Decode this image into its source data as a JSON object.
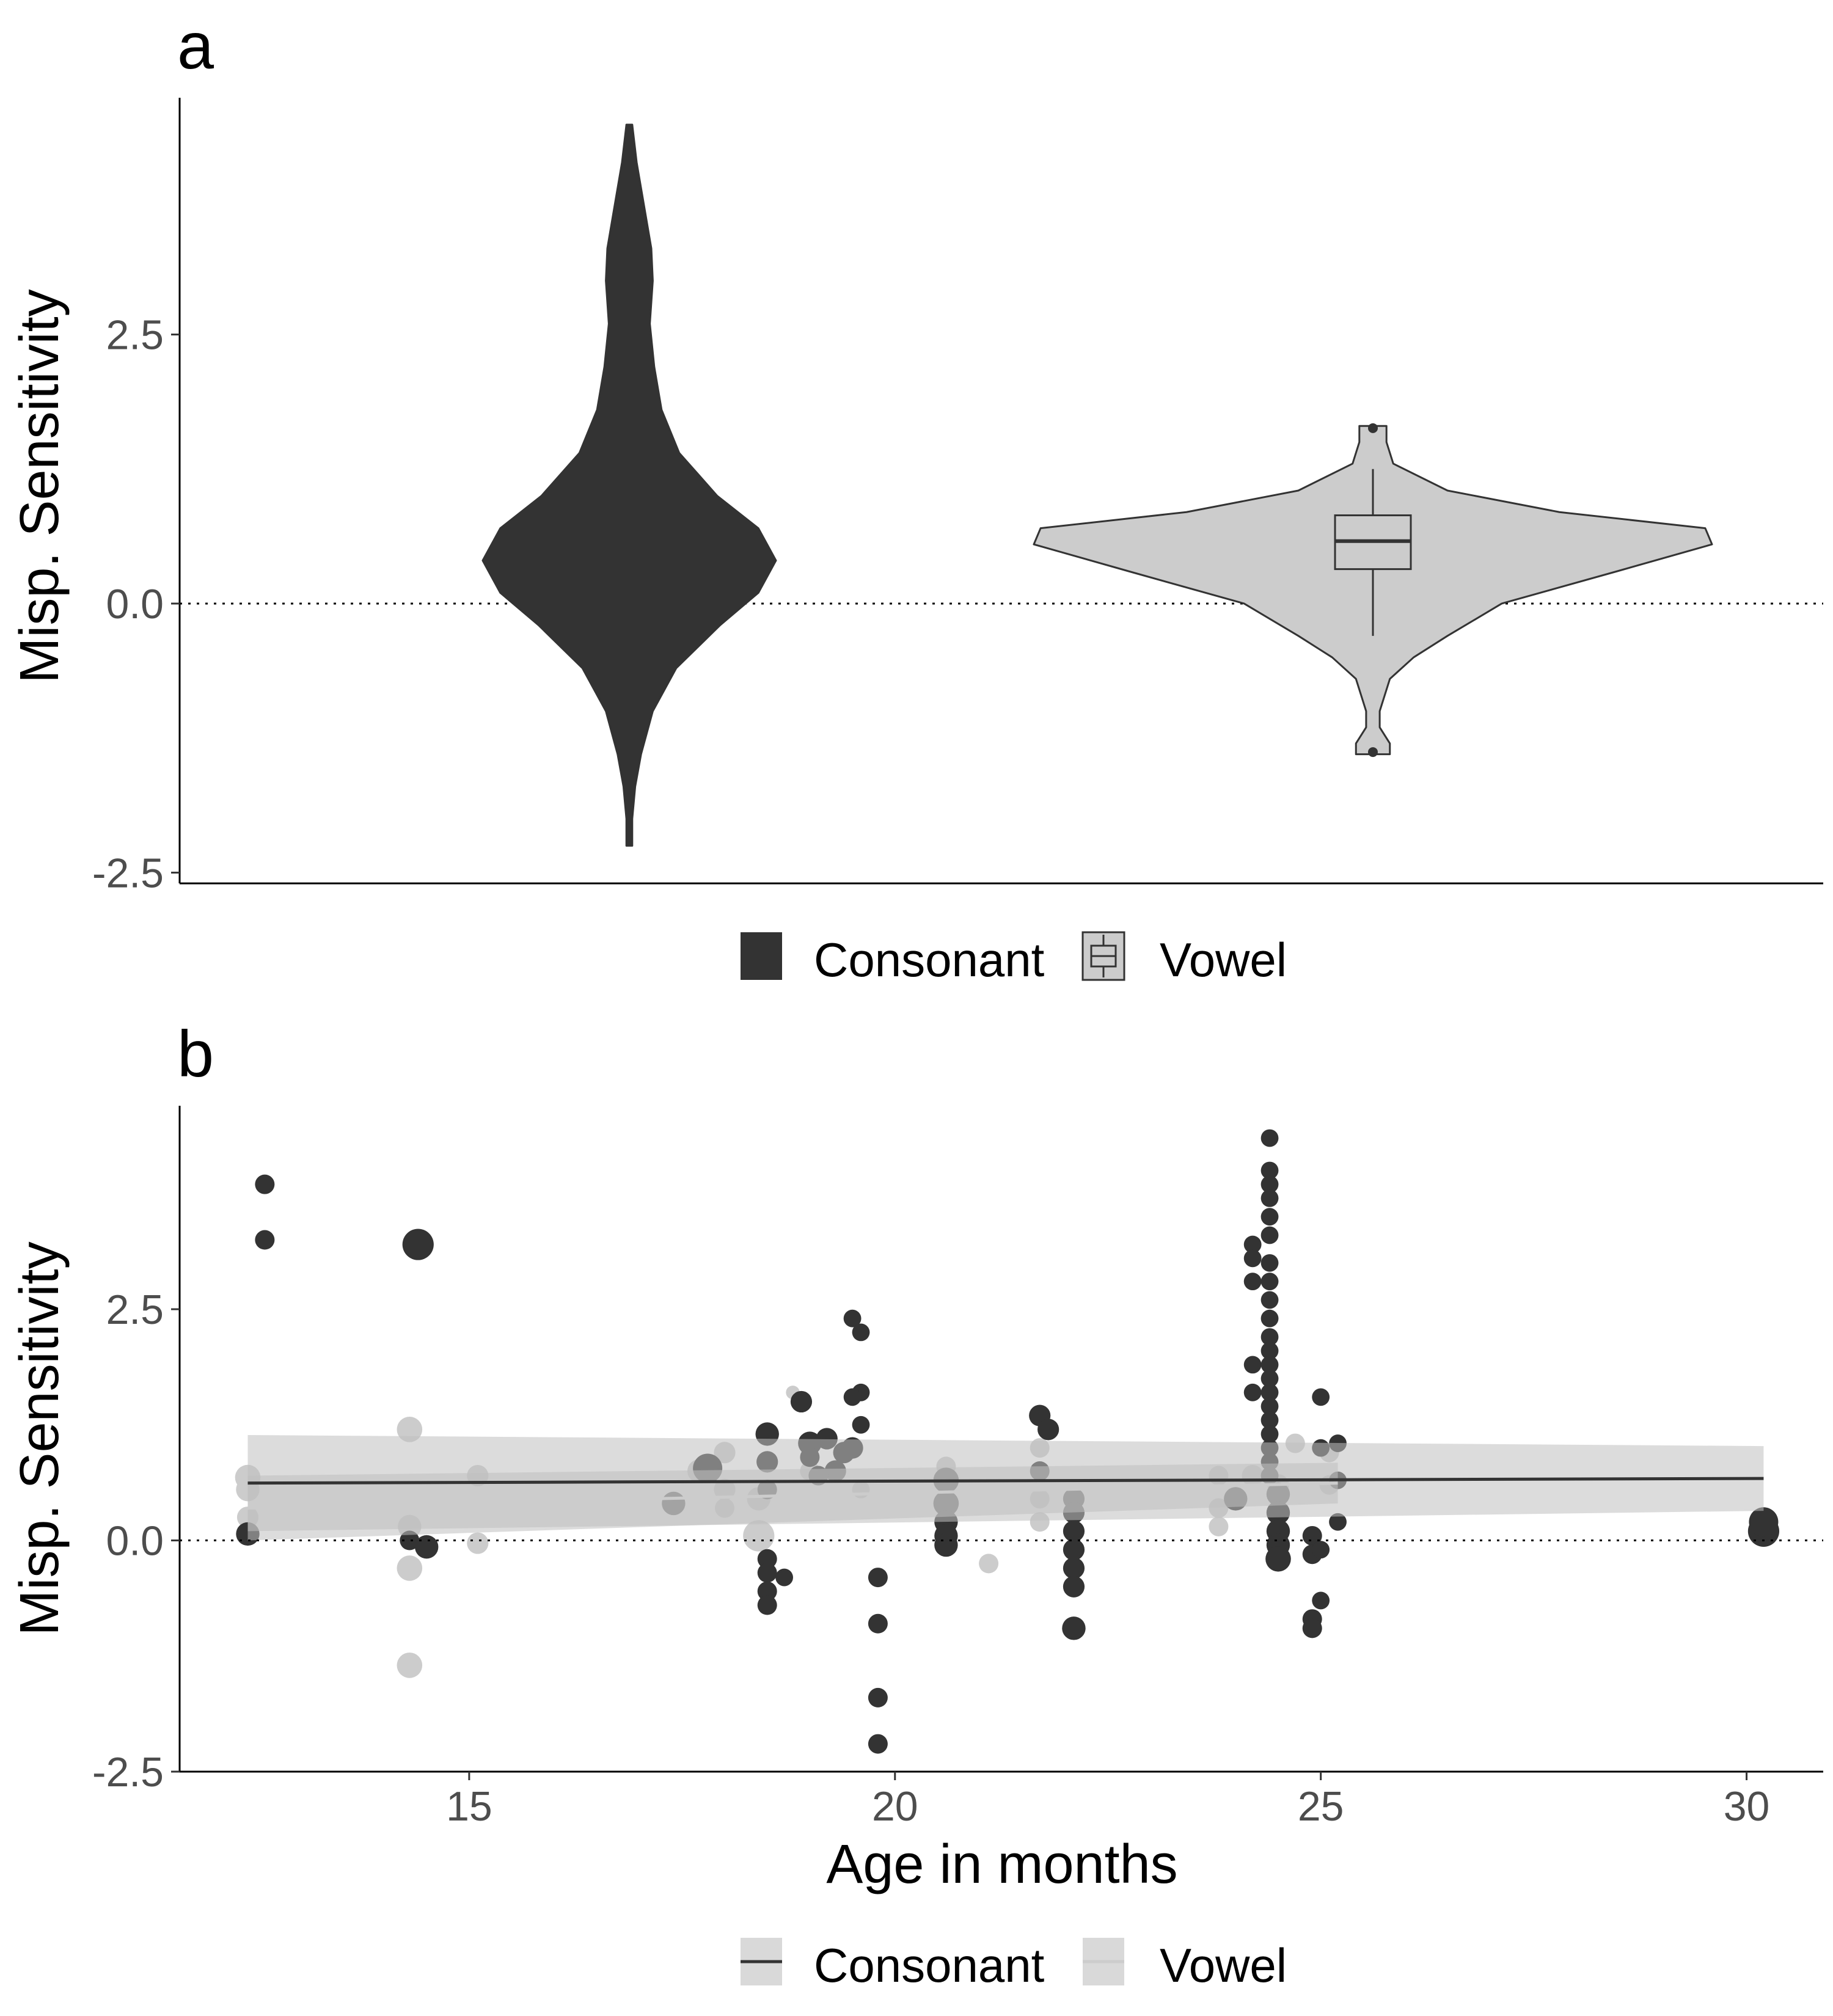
{
  "chart_data": [
    {
      "panel": "a",
      "type": "violin",
      "ylabel": "Misp. Sensitivity",
      "yticks": [
        "2.5",
        "0.0",
        "-2.5"
      ],
      "ylim": [
        -2.6,
        4.7
      ],
      "reference_line_y": 0,
      "grid": false,
      "legend_position": "bottom",
      "series": [
        {
          "name": "Consonant",
          "color": "#333333",
          "boxplot_visible": false,
          "density": [
            {
              "y": -2.25,
              "w": 0.02
            },
            {
              "y": -2.0,
              "w": 0.02
            },
            {
              "y": -1.7,
              "w": 0.04
            },
            {
              "y": -1.4,
              "w": 0.08
            },
            {
              "y": -1.0,
              "w": 0.16
            },
            {
              "y": -0.6,
              "w": 0.32
            },
            {
              "y": -0.2,
              "w": 0.62
            },
            {
              "y": 0.1,
              "w": 0.88
            },
            {
              "y": 0.4,
              "w": 1.0
            },
            {
              "y": 0.7,
              "w": 0.88
            },
            {
              "y": 1.0,
              "w": 0.6
            },
            {
              "y": 1.4,
              "w": 0.34
            },
            {
              "y": 1.8,
              "w": 0.22
            },
            {
              "y": 2.2,
              "w": 0.17
            },
            {
              "y": 2.6,
              "w": 0.14
            },
            {
              "y": 3.0,
              "w": 0.16
            },
            {
              "y": 3.3,
              "w": 0.15
            },
            {
              "y": 3.7,
              "w": 0.1
            },
            {
              "y": 4.1,
              "w": 0.05
            },
            {
              "y": 4.45,
              "w": 0.02
            }
          ]
        },
        {
          "name": "Vowel",
          "color": "#cccccc",
          "boxplot_visible": true,
          "density": [
            {
              "y": -1.4,
              "w": 0.05
            },
            {
              "y": -1.3,
              "w": 0.05
            },
            {
              "y": -1.15,
              "w": 0.02
            },
            {
              "y": -1.0,
              "w": 0.02
            },
            {
              "y": -0.7,
              "w": 0.05
            },
            {
              "y": -0.5,
              "w": 0.12
            },
            {
              "y": -0.3,
              "w": 0.22
            },
            {
              "y": 0.0,
              "w": 0.38
            },
            {
              "y": 0.3,
              "w": 0.72
            },
            {
              "y": 0.55,
              "w": 1.0
            },
            {
              "y": 0.7,
              "w": 0.98
            },
            {
              "y": 0.85,
              "w": 0.55
            },
            {
              "y": 1.05,
              "w": 0.22
            },
            {
              "y": 1.3,
              "w": 0.06
            },
            {
              "y": 1.5,
              "w": 0.04
            },
            {
              "y": 1.65,
              "w": 0.04
            }
          ],
          "box": {
            "q1": 0.32,
            "median": 0.58,
            "q3": 0.82,
            "whisker_low": -0.3,
            "whisker_high": 1.25
          },
          "outliers": [
            1.63,
            -1.38
          ]
        }
      ]
    },
    {
      "panel": "b",
      "type": "scatter",
      "xlabel": "Age in months",
      "ylabel": "Misp. Sensitivity",
      "xticks": [
        "15",
        "20",
        "25",
        "30"
      ],
      "yticks": [
        "2.5",
        "0.0",
        "-2.5"
      ],
      "xlim": [
        11.6,
        30.9
      ],
      "ylim": [
        -2.5,
        4.7
      ],
      "reference_line_y": 0,
      "grid": false,
      "legend_position": "bottom",
      "series": [
        {
          "name": "Consonant",
          "color": "#333333",
          "trend": {
            "x": [
              12.4,
              30.2
            ],
            "y": [
              0.62,
              0.67
            ],
            "ci_low": [
              0.1,
              0.32
            ],
            "ci_high": [
              1.14,
              1.02
            ]
          },
          "points": [
            {
              "x": 12.6,
              "y": 3.85,
              "s": 1
            },
            {
              "x": 12.6,
              "y": 3.25,
              "s": 1
            },
            {
              "x": 12.4,
              "y": 0.07,
              "s": 1.2
            },
            {
              "x": 14.4,
              "y": 3.2,
              "s": 1.6
            },
            {
              "x": 14.5,
              "y": -0.07,
              "s": 1.2
            },
            {
              "x": 14.3,
              "y": 0.0,
              "s": 1
            },
            {
              "x": 17.4,
              "y": 0.4,
              "s": 1.2
            },
            {
              "x": 17.8,
              "y": 0.78,
              "s": 1.5
            },
            {
              "x": 18.5,
              "y": 1.15,
              "s": 1.2
            },
            {
              "x": 18.5,
              "y": 0.85,
              "s": 1.1
            },
            {
              "x": 18.5,
              "y": 0.55,
              "s": 1
            },
            {
              "x": 18.5,
              "y": -0.2,
              "s": 1
            },
            {
              "x": 18.5,
              "y": -0.35,
              "s": 1
            },
            {
              "x": 18.5,
              "y": -0.55,
              "s": 1
            },
            {
              "x": 18.5,
              "y": -0.7,
              "s": 1
            },
            {
              "x": 18.7,
              "y": -0.4,
              "s": 0.9
            },
            {
              "x": 18.9,
              "y": 1.5,
              "s": 1.1
            },
            {
              "x": 19.0,
              "y": 1.05,
              "s": 1.2
            },
            {
              "x": 19.2,
              "y": 1.1,
              "s": 1.1
            },
            {
              "x": 19.3,
              "y": 0.75,
              "s": 1.1
            },
            {
              "x": 19.4,
              "y": 0.95,
              "s": 1.1
            },
            {
              "x": 19.5,
              "y": 1.0,
              "s": 1.1
            },
            {
              "x": 19.0,
              "y": 0.9,
              "s": 1
            },
            {
              "x": 19.1,
              "y": 0.7,
              "s": 1
            },
            {
              "x": 19.5,
              "y": 2.4,
              "s": 0.9
            },
            {
              "x": 19.6,
              "y": 2.25,
              "s": 0.9
            },
            {
              "x": 19.6,
              "y": 1.6,
              "s": 0.9
            },
            {
              "x": 19.5,
              "y": 1.55,
              "s": 0.9
            },
            {
              "x": 19.6,
              "y": 1.25,
              "s": 0.9
            },
            {
              "x": 19.8,
              "y": -0.4,
              "s": 1
            },
            {
              "x": 19.8,
              "y": -0.9,
              "s": 1
            },
            {
              "x": 19.8,
              "y": -1.7,
              "s": 1
            },
            {
              "x": 19.8,
              "y": -2.2,
              "s": 1
            },
            {
              "x": 20.6,
              "y": 0.65,
              "s": 1.3
            },
            {
              "x": 20.6,
              "y": 0.4,
              "s": 1.3
            },
            {
              "x": 20.6,
              "y": 0.2,
              "s": 1.2
            },
            {
              "x": 20.6,
              "y": 0.05,
              "s": 1.2
            },
            {
              "x": 20.6,
              "y": -0.05,
              "s": 1.2
            },
            {
              "x": 21.7,
              "y": 1.35,
              "s": 1.1
            },
            {
              "x": 21.8,
              "y": 1.2,
              "s": 1.1
            },
            {
              "x": 21.7,
              "y": 0.75,
              "s": 1
            },
            {
              "x": 22.1,
              "y": 0.45,
              "s": 1.1
            },
            {
              "x": 22.1,
              "y": 0.3,
              "s": 1.1
            },
            {
              "x": 22.1,
              "y": 0.1,
              "s": 1.1
            },
            {
              "x": 22.1,
              "y": -0.1,
              "s": 1.1
            },
            {
              "x": 22.1,
              "y": -0.3,
              "s": 1.1
            },
            {
              "x": 22.1,
              "y": -0.5,
              "s": 1.1
            },
            {
              "x": 22.1,
              "y": -0.95,
              "s": 1.2
            },
            {
              "x": 24.0,
              "y": 0.45,
              "s": 1.2
            },
            {
              "x": 24.2,
              "y": 3.2,
              "s": 0.9
            },
            {
              "x": 24.2,
              "y": 3.05,
              "s": 0.9
            },
            {
              "x": 24.2,
              "y": 2.8,
              "s": 0.9
            },
            {
              "x": 24.2,
              "y": 1.9,
              "s": 0.9
            },
            {
              "x": 24.2,
              "y": 1.6,
              "s": 0.9
            },
            {
              "x": 24.4,
              "y": 4.35,
              "s": 0.9
            },
            {
              "x": 24.4,
              "y": 4.0,
              "s": 0.9
            },
            {
              "x": 24.4,
              "y": 3.85,
              "s": 0.9
            },
            {
              "x": 24.4,
              "y": 3.7,
              "s": 0.9
            },
            {
              "x": 24.4,
              "y": 3.5,
              "s": 0.9
            },
            {
              "x": 24.4,
              "y": 3.3,
              "s": 0.9
            },
            {
              "x": 24.4,
              "y": 3.0,
              "s": 0.9
            },
            {
              "x": 24.4,
              "y": 2.8,
              "s": 0.9
            },
            {
              "x": 24.4,
              "y": 2.6,
              "s": 0.9
            },
            {
              "x": 24.4,
              "y": 2.4,
              "s": 0.9
            },
            {
              "x": 24.4,
              "y": 2.2,
              "s": 0.9
            },
            {
              "x": 24.4,
              "y": 2.05,
              "s": 0.9
            },
            {
              "x": 24.4,
              "y": 1.9,
              "s": 0.9
            },
            {
              "x": 24.4,
              "y": 1.75,
              "s": 0.9
            },
            {
              "x": 24.4,
              "y": 1.6,
              "s": 0.9
            },
            {
              "x": 24.4,
              "y": 1.45,
              "s": 0.9
            },
            {
              "x": 24.4,
              "y": 1.3,
              "s": 0.9
            },
            {
              "x": 24.4,
              "y": 1.15,
              "s": 0.9
            },
            {
              "x": 24.4,
              "y": 1.0,
              "s": 0.9
            },
            {
              "x": 24.4,
              "y": 0.85,
              "s": 0.9
            },
            {
              "x": 24.4,
              "y": 0.7,
              "s": 0.9
            },
            {
              "x": 24.5,
              "y": 0.5,
              "s": 1.2
            },
            {
              "x": 24.5,
              "y": 0.3,
              "s": 1.2
            },
            {
              "x": 24.5,
              "y": 0.1,
              "s": 1.2
            },
            {
              "x": 24.5,
              "y": -0.05,
              "s": 1.2
            },
            {
              "x": 24.5,
              "y": -0.2,
              "s": 1.3
            },
            {
              "x": 24.9,
              "y": 0.05,
              "s": 1
            },
            {
              "x": 24.9,
              "y": -0.15,
              "s": 1
            },
            {
              "x": 24.9,
              "y": -0.85,
              "s": 1
            },
            {
              "x": 24.9,
              "y": -0.95,
              "s": 1
            },
            {
              "x": 25.0,
              "y": 1.55,
              "s": 0.9
            },
            {
              "x": 25.0,
              "y": 1.0,
              "s": 0.9
            },
            {
              "x": 25.0,
              "y": -0.1,
              "s": 0.9
            },
            {
              "x": 25.0,
              "y": -0.65,
              "s": 0.9
            },
            {
              "x": 25.2,
              "y": 1.05,
              "s": 0.9
            },
            {
              "x": 25.2,
              "y": 0.65,
              "s": 0.9
            },
            {
              "x": 25.2,
              "y": 0.2,
              "s": 0.9
            },
            {
              "x": 30.2,
              "y": 0.1,
              "s": 1.6
            },
            {
              "x": 30.2,
              "y": 0.2,
              "s": 1.5
            }
          ]
        },
        {
          "name": "Vowel",
          "color": "#cccccc",
          "trend": {
            "x": [
              12.4,
              25.2
            ],
            "y": [
              0.35,
              0.62
            ],
            "ci_low": [
              0.0,
              0.4
            ],
            "ci_high": [
              0.7,
              0.84
            ]
          },
          "points": [
            {
              "x": 12.4,
              "y": 0.68,
              "s": 1.3
            },
            {
              "x": 12.4,
              "y": 0.55,
              "s": 1.2
            },
            {
              "x": 12.4,
              "y": 0.25,
              "s": 1.1
            },
            {
              "x": 14.3,
              "y": 1.2,
              "s": 1.3
            },
            {
              "x": 14.3,
              "y": 0.15,
              "s": 1.2
            },
            {
              "x": 14.3,
              "y": -0.3,
              "s": 1.3
            },
            {
              "x": 14.3,
              "y": -1.35,
              "s": 1.3
            },
            {
              "x": 15.1,
              "y": 0.7,
              "s": 1.1
            },
            {
              "x": 15.1,
              "y": -0.03,
              "s": 1.1
            },
            {
              "x": 17.7,
              "y": 0.75,
              "s": 1.2
            },
            {
              "x": 18.0,
              "y": 0.95,
              "s": 1.1
            },
            {
              "x": 18.0,
              "y": 0.55,
              "s": 1.1
            },
            {
              "x": 18.0,
              "y": 0.35,
              "s": 1
            },
            {
              "x": 18.4,
              "y": 0.05,
              "s": 1.6
            },
            {
              "x": 18.4,
              "y": 0.45,
              "s": 1.2
            },
            {
              "x": 18.8,
              "y": 1.6,
              "s": 0.7
            },
            {
              "x": 19.0,
              "y": 0.75,
              "s": 1
            },
            {
              "x": 19.6,
              "y": 0.55,
              "s": 0.9
            },
            {
              "x": 20.6,
              "y": 0.8,
              "s": 1
            },
            {
              "x": 21.1,
              "y": -0.25,
              "s": 1
            },
            {
              "x": 21.7,
              "y": 1.0,
              "s": 1
            },
            {
              "x": 21.7,
              "y": 0.45,
              "s": 1
            },
            {
              "x": 21.7,
              "y": 0.2,
              "s": 1
            },
            {
              "x": 23.8,
              "y": 0.7,
              "s": 1
            },
            {
              "x": 23.8,
              "y": 0.35,
              "s": 1
            },
            {
              "x": 23.8,
              "y": 0.15,
              "s": 1
            },
            {
              "x": 24.2,
              "y": 0.7,
              "s": 1.1
            },
            {
              "x": 24.5,
              "y": 0.6,
              "s": 1.1
            },
            {
              "x": 24.7,
              "y": 1.05,
              "s": 1
            },
            {
              "x": 25.1,
              "y": 0.95,
              "s": 1
            },
            {
              "x": 25.1,
              "y": 0.6,
              "s": 1
            }
          ]
        }
      ]
    }
  ]
}
